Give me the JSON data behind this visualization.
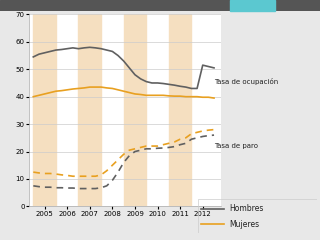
{
  "background_color": "#e8e8e8",
  "plot_bg": "#ffffff",
  "shade_color": "#f5dfc0",
  "xlim": [
    2004.3,
    2012.8
  ],
  "ylim": [
    0,
    70
  ],
  "yticks": [
    0,
    10,
    20,
    30,
    40,
    50,
    60,
    70
  ],
  "xtick_labels": [
    "2005",
    "2006",
    "2007",
    "2008",
    "2009",
    "2010",
    "2011",
    "2012"
  ],
  "xtick_positions": [
    2005,
    2006,
    2007,
    2008,
    2009,
    2010,
    2011,
    2012
  ],
  "hombres_ocup_x": [
    2004.5,
    2004.75,
    2005.0,
    2005.25,
    2005.5,
    2005.75,
    2006.0,
    2006.25,
    2006.5,
    2006.75,
    2007.0,
    2007.25,
    2007.5,
    2007.75,
    2008.0,
    2008.25,
    2008.5,
    2008.75,
    2009.0,
    2009.25,
    2009.5,
    2009.75,
    2010.0,
    2010.25,
    2010.5,
    2010.75,
    2011.0,
    2011.25,
    2011.5,
    2011.75,
    2012.0,
    2012.25,
    2012.5
  ],
  "hombres_ocup_y": [
    54.5,
    55.5,
    56.0,
    56.5,
    57.0,
    57.2,
    57.5,
    57.8,
    57.5,
    57.8,
    58.0,
    57.8,
    57.5,
    57.0,
    56.5,
    55.0,
    53.0,
    50.5,
    48.0,
    46.5,
    45.5,
    45.0,
    45.0,
    44.8,
    44.5,
    44.2,
    43.8,
    43.5,
    43.0,
    43.0,
    51.5,
    51.0,
    50.5
  ],
  "mujeres_ocup_x": [
    2004.5,
    2004.75,
    2005.0,
    2005.25,
    2005.5,
    2005.75,
    2006.0,
    2006.25,
    2006.5,
    2006.75,
    2007.0,
    2007.25,
    2007.5,
    2007.75,
    2008.0,
    2008.25,
    2008.5,
    2008.75,
    2009.0,
    2009.25,
    2009.5,
    2009.75,
    2010.0,
    2010.25,
    2010.5,
    2010.75,
    2011.0,
    2011.25,
    2011.5,
    2011.75,
    2012.0,
    2012.25,
    2012.5
  ],
  "mujeres_ocup_y": [
    40.0,
    40.5,
    41.0,
    41.5,
    42.0,
    42.2,
    42.5,
    42.8,
    43.0,
    43.2,
    43.5,
    43.5,
    43.5,
    43.2,
    43.0,
    42.5,
    42.0,
    41.5,
    41.0,
    40.8,
    40.5,
    40.5,
    40.5,
    40.5,
    40.3,
    40.2,
    40.2,
    40.0,
    40.0,
    40.0,
    39.8,
    39.8,
    39.5
  ],
  "hombres_paro_x": [
    2004.5,
    2004.75,
    2005.0,
    2005.25,
    2005.5,
    2005.75,
    2006.0,
    2006.25,
    2006.5,
    2006.75,
    2007.0,
    2007.25,
    2007.5,
    2007.75,
    2008.0,
    2008.25,
    2008.5,
    2008.75,
    2009.0,
    2009.25,
    2009.5,
    2009.75,
    2010.0,
    2010.25,
    2010.5,
    2010.75,
    2011.0,
    2011.25,
    2011.5,
    2011.75,
    2012.0,
    2012.25,
    2012.5
  ],
  "hombres_paro_y": [
    7.5,
    7.2,
    7.0,
    7.0,
    6.8,
    6.8,
    6.7,
    6.7,
    6.5,
    6.5,
    6.5,
    6.5,
    6.8,
    7.5,
    9.5,
    12.5,
    16.0,
    18.5,
    20.0,
    20.5,
    21.0,
    21.0,
    21.2,
    21.3,
    21.5,
    21.8,
    22.5,
    23.0,
    24.5,
    25.0,
    25.5,
    25.8,
    26.0
  ],
  "mujeres_paro_x": [
    2004.5,
    2004.75,
    2005.0,
    2005.25,
    2005.5,
    2005.75,
    2006.0,
    2006.25,
    2006.5,
    2006.75,
    2007.0,
    2007.25,
    2007.5,
    2007.75,
    2008.0,
    2008.25,
    2008.5,
    2008.75,
    2009.0,
    2009.25,
    2009.5,
    2009.75,
    2010.0,
    2010.25,
    2010.5,
    2010.75,
    2011.0,
    2011.25,
    2011.5,
    2011.75,
    2012.0,
    2012.25,
    2012.5
  ],
  "mujeres_paro_y": [
    12.5,
    12.2,
    12.0,
    12.0,
    11.8,
    11.5,
    11.3,
    11.0,
    11.0,
    11.0,
    11.0,
    11.0,
    11.5,
    13.0,
    15.0,
    17.0,
    19.0,
    20.5,
    21.0,
    21.5,
    22.0,
    22.0,
    22.0,
    22.5,
    23.0,
    23.5,
    24.5,
    25.0,
    26.5,
    27.0,
    27.5,
    27.8,
    28.0
  ],
  "label_ocup": "Tasa de ocupación",
  "label_paro": "Tasa de paro",
  "color_hombres": "#606060",
  "color_mujeres": "#e8a020",
  "legend_hombres": "Hombres",
  "legend_mujeres": "Mujeres",
  "top_bar_cyan": "#5bc8d0",
  "top_bar_dark": "#555555"
}
